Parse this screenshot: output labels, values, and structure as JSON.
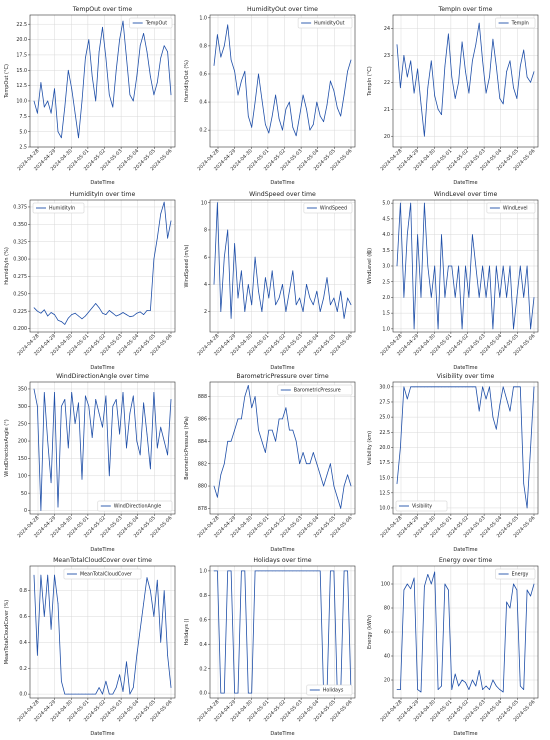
{
  "colors": {
    "line": "#1f4fa8",
    "grid": "#d9d9d9",
    "axis": "#333333"
  },
  "x_ticks": [
    "2024-04-28",
    "2024-04-29",
    "2024-04-30",
    "2024-05-01",
    "2024-05-02",
    "2024-05-03",
    "2024-05-04",
    "2024-05-05",
    "2024-05-06"
  ],
  "chart_data": [
    {
      "type": "line",
      "title": "TempOut over time",
      "xlabel": "DateTime",
      "ylabel": "TempOut (°C)",
      "legend": "top-right",
      "series": [
        {
          "name": "TempOut"
        }
      ],
      "ylim": [
        2.5,
        24
      ],
      "yticks": [
        2.5,
        5.0,
        7.5,
        10.0,
        12.5,
        15.0,
        17.5,
        20.0,
        22.5
      ],
      "y": [
        10,
        8,
        13,
        9,
        10,
        8,
        12,
        5,
        4,
        9,
        15,
        12,
        8,
        4,
        10,
        17,
        20,
        14,
        10,
        18,
        22,
        17,
        11,
        9,
        15,
        20,
        23,
        17,
        11,
        10,
        14,
        19,
        21,
        18,
        14,
        11,
        13,
        17,
        19,
        18,
        11
      ]
    },
    {
      "type": "line",
      "title": "HumidityOut over time",
      "xlabel": "DateTime",
      "ylabel": "HumidityOut (%)",
      "legend": "top-right",
      "series": [
        {
          "name": "HumidityOut"
        }
      ],
      "ylim": [
        0.08,
        1.02
      ],
      "yticks": [
        0.2,
        0.4,
        0.6,
        0.8,
        1.0
      ],
      "y": [
        0.66,
        0.88,
        0.72,
        0.8,
        0.95,
        0.7,
        0.62,
        0.45,
        0.55,
        0.62,
        0.3,
        0.22,
        0.4,
        0.6,
        0.42,
        0.24,
        0.18,
        0.3,
        0.45,
        0.28,
        0.2,
        0.35,
        0.4,
        0.22,
        0.16,
        0.3,
        0.45,
        0.35,
        0.2,
        0.24,
        0.4,
        0.3,
        0.26,
        0.38,
        0.55,
        0.48,
        0.36,
        0.3,
        0.45,
        0.62,
        0.7
      ]
    },
    {
      "type": "line",
      "title": "TempIn over time",
      "xlabel": "DateTime",
      "ylabel": "TempIn (°C)",
      "legend": "top-right",
      "series": [
        {
          "name": "TempIn"
        }
      ],
      "ylim": [
        19.6,
        24.5
      ],
      "yticks": [
        20,
        21,
        22,
        23,
        24
      ],
      "y": [
        23.4,
        21.8,
        23,
        22.2,
        22.8,
        21.6,
        22.5,
        21.2,
        20,
        21.8,
        22.8,
        21.5,
        21,
        20.8,
        22.6,
        23.8,
        22.2,
        21.4,
        22,
        23.5,
        22.4,
        21.6,
        22.8,
        23.4,
        24.2,
        22.8,
        21.6,
        22.2,
        23.6,
        22.6,
        21.4,
        21.2,
        22.4,
        22.8,
        21.8,
        21.4,
        22.6,
        23.2,
        22.2,
        22,
        22.4
      ]
    },
    {
      "type": "line",
      "title": "HumidityIn over time",
      "xlabel": "DateTime",
      "ylabel": "HumidityIn (%)",
      "legend": "top-left",
      "series": [
        {
          "name": "HumidityIn"
        }
      ],
      "ylim": [
        0.195,
        0.385
      ],
      "yticks": [
        0.2,
        0.225,
        0.25,
        0.275,
        0.3,
        0.325,
        0.35,
        0.375
      ],
      "y": [
        0.23,
        0.225,
        0.222,
        0.227,
        0.218,
        0.223,
        0.22,
        0.212,
        0.21,
        0.206,
        0.215,
        0.22,
        0.222,
        0.218,
        0.214,
        0.218,
        0.224,
        0.23,
        0.236,
        0.23,
        0.222,
        0.22,
        0.226,
        0.222,
        0.218,
        0.22,
        0.223,
        0.22,
        0.217,
        0.218,
        0.222,
        0.224,
        0.22,
        0.226,
        0.226,
        0.3,
        0.33,
        0.365,
        0.382,
        0.33,
        0.355
      ]
    },
    {
      "type": "line",
      "title": "WindSpeed over time",
      "xlabel": "DateTime",
      "ylabel": "WindSpeed (m/s)",
      "legend": "top-right",
      "series": [
        {
          "name": "WindSpeed"
        }
      ],
      "ylim": [
        0.5,
        10.2
      ],
      "yticks": [
        2,
        4,
        6,
        8,
        10
      ],
      "y": [
        4,
        10,
        2,
        6,
        8,
        1.5,
        7,
        3,
        5,
        2,
        4,
        2.5,
        6,
        3.5,
        2,
        4.5,
        3,
        5,
        2.5,
        3,
        4,
        2,
        3.5,
        5,
        2.5,
        3,
        2,
        4,
        3,
        2.5,
        3.5,
        2,
        3,
        4.5,
        2.5,
        3,
        2,
        3.5,
        1.5,
        3,
        2.5
      ]
    },
    {
      "type": "line",
      "title": "WindLevel over time",
      "xlabel": "DateTime",
      "ylabel": "WindLevel (级)",
      "legend": "top-right",
      "series": [
        {
          "name": "WindLevel"
        }
      ],
      "ylim": [
        0.9,
        5.1
      ],
      "yticks": [
        1.0,
        1.5,
        2.0,
        2.5,
        3.0,
        3.5,
        4.0,
        4.5,
        5.0
      ],
      "y": [
        3,
        5,
        2,
        4,
        5,
        1,
        4,
        2,
        5,
        3,
        2,
        3,
        1,
        4,
        2,
        3,
        3,
        2,
        3,
        1,
        3,
        2,
        4,
        3,
        2,
        3,
        2,
        3,
        1,
        3,
        2,
        3,
        2,
        3,
        1,
        2,
        3,
        2,
        3,
        1,
        2
      ]
    },
    {
      "type": "line",
      "title": "WindDirectionAngle over time",
      "xlabel": "DateTime",
      "ylabel": "WindDirectionAngle (°)",
      "legend": "lower-right",
      "series": [
        {
          "name": "WindDirectionAngle"
        }
      ],
      "ylim": [
        -10,
        370
      ],
      "yticks": [
        0,
        50,
        100,
        150,
        200,
        250,
        300,
        350
      ],
      "y": [
        350,
        300,
        0,
        340,
        200,
        80,
        340,
        10,
        300,
        320,
        180,
        340,
        250,
        310,
        90,
        330,
        300,
        210,
        320,
        280,
        240,
        330,
        100,
        300,
        320,
        220,
        340,
        180,
        280,
        330,
        200,
        160,
        310,
        220,
        120,
        340,
        180,
        240,
        200,
        160,
        320
      ]
    },
    {
      "type": "line",
      "title": "BarometricPressure over time",
      "xlabel": "DateTime",
      "ylabel": "BarometricPressure (hPa)",
      "legend": "top-right",
      "series": [
        {
          "name": "BarometricPressure"
        }
      ],
      "ylim": [
        877.5,
        889.3
      ],
      "yticks": [
        878,
        880,
        882,
        884,
        886,
        888
      ],
      "y": [
        880,
        879,
        881,
        882,
        884,
        884,
        885,
        886,
        886,
        888,
        889,
        887,
        888,
        885,
        884,
        883,
        885,
        885,
        884,
        886,
        886,
        887,
        885,
        885,
        884,
        882,
        883,
        882,
        882,
        883,
        882,
        881,
        880,
        881,
        882,
        880,
        879,
        878,
        880,
        881,
        880
      ]
    },
    {
      "type": "line",
      "title": "Visibility over time",
      "xlabel": "DateTime",
      "ylabel": "Visibility (km)",
      "legend": "lower-left",
      "series": [
        {
          "name": "Visibility"
        }
      ],
      "ylim": [
        9,
        30.8
      ],
      "yticks": [
        10.0,
        12.5,
        15.0,
        17.5,
        20.0,
        22.5,
        25.0,
        27.5,
        30.0
      ],
      "y": [
        14,
        20,
        30,
        28,
        30,
        30,
        30,
        30,
        30,
        30,
        30,
        30,
        30,
        30,
        30,
        30,
        30,
        30,
        30,
        30,
        30,
        30,
        30,
        30,
        26,
        30,
        28,
        30,
        25,
        23,
        27,
        30,
        28,
        26,
        30,
        30,
        30,
        14,
        10,
        20,
        30
      ]
    },
    {
      "type": "line",
      "title": "MeanTotalCloudCover over time",
      "xlabel": "DateTime",
      "ylabel": "MeanTotalCloudCover (%)",
      "legend": "top-center",
      "series": [
        {
          "name": "MeanTotalCloudCover"
        }
      ],
      "ylim": [
        -0.03,
        0.99
      ],
      "yticks": [
        0.0,
        0.2,
        0.4,
        0.6,
        0.8
      ],
      "y": [
        0.92,
        0.3,
        0.92,
        0.6,
        0.92,
        0.5,
        0.92,
        0.7,
        0.1,
        0,
        0,
        0,
        0,
        0,
        0,
        0,
        0,
        0,
        0,
        0.05,
        0,
        0.1,
        0,
        0,
        0.05,
        0.15,
        0.02,
        0.25,
        0,
        0.05,
        0.3,
        0.5,
        0.7,
        0.9,
        0.8,
        0.6,
        0.88,
        0.4,
        0.8,
        0.3,
        0.05
      ]
    },
    {
      "type": "line",
      "title": "Holidays over time",
      "xlabel": "DateTime",
      "ylabel": "Holidays ()",
      "legend": "lower-right",
      "series": [
        {
          "name": "Holidays"
        }
      ],
      "ylim": [
        -0.04,
        1.04
      ],
      "yticks": [
        0.0,
        0.2,
        0.4,
        0.6,
        0.8,
        1.0
      ],
      "y": [
        1,
        1,
        0,
        0,
        1,
        1,
        0,
        0,
        1,
        1,
        0,
        0,
        1,
        1,
        1,
        1,
        1,
        1,
        1,
        1,
        1,
        1,
        1,
        1,
        1,
        1,
        1,
        1,
        1,
        1,
        1,
        1,
        0,
        0,
        1,
        1,
        0,
        0,
        1,
        1,
        0
      ]
    },
    {
      "type": "line",
      "title": "Energy over time",
      "xlabel": "DateTime",
      "ylabel": "Energy (kWh)",
      "legend": "top-right",
      "series": [
        {
          "name": "Energy"
        }
      ],
      "ylim": [
        5,
        115
      ],
      "yticks": [
        20,
        40,
        60,
        80,
        100
      ],
      "y": [
        12,
        12,
        95,
        100,
        96,
        105,
        12,
        10,
        98,
        108,
        100,
        110,
        12,
        15,
        100,
        95,
        12,
        25,
        15,
        20,
        18,
        12,
        20,
        15,
        28,
        12,
        15,
        12,
        20,
        15,
        12,
        10,
        85,
        80,
        100,
        95,
        15,
        12,
        95,
        90,
        100
      ]
    }
  ]
}
